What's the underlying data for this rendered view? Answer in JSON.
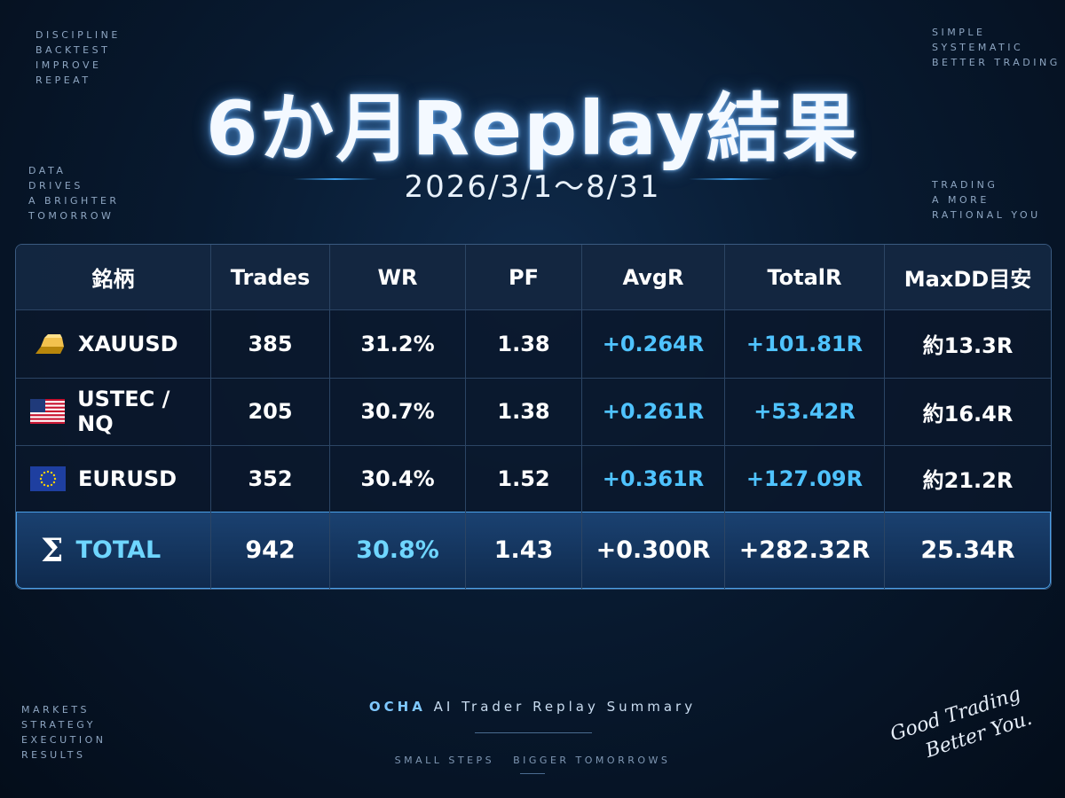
{
  "header": {
    "title": "6か月Replay結果",
    "period": "2026/3/1～8/31"
  },
  "corners": {
    "top_left": [
      "DISCIPLINE",
      "BACKTEST",
      "IMPROVE",
      "REPEAT"
    ],
    "mid_left": [
      "DATA",
      "DRIVES",
      "A BRIGHTER",
      "TOMORROW"
    ],
    "top_right": [
      "SIMPLE",
      "SYSTEMATIC",
      "BETTER TRADING"
    ],
    "mid_right": [
      "TRADING",
      "A MORE",
      "RATIONAL YOU"
    ],
    "bottom_left": [
      "MARKETS",
      "STRATEGY",
      "EXECUTION",
      "RESULTS"
    ]
  },
  "table": {
    "columns": [
      "銘柄",
      "Trades",
      "WR",
      "PF",
      "AvgR",
      "TotalR",
      "MaxDD目安"
    ],
    "rows": [
      [
        "XAUUSD",
        "385",
        "31.2%",
        "1.38",
        "+0.264R",
        "+101.81R",
        "約13.3R"
      ],
      [
        "USTEC / NQ",
        "205",
        "30.7%",
        "1.38",
        "+0.261R",
        "+53.42R",
        "約16.4R"
      ],
      [
        "EURUSD",
        "352",
        "30.4%",
        "1.52",
        "+0.361R",
        "+127.09R",
        "約21.2R"
      ]
    ],
    "total": {
      "symbol": "Σ",
      "cells": [
        "TOTAL",
        "942",
        "30.8%",
        "1.43",
        "+0.300R",
        "+282.32R",
        "25.34R"
      ]
    }
  },
  "footer": {
    "brand": "OCHA",
    "subtitle": "AI Trader Replay Summary",
    "tagline": "SMALL STEPS   BIGGER TOMORROWS"
  },
  "signature": [
    "Good Trading",
    "Better You."
  ]
}
